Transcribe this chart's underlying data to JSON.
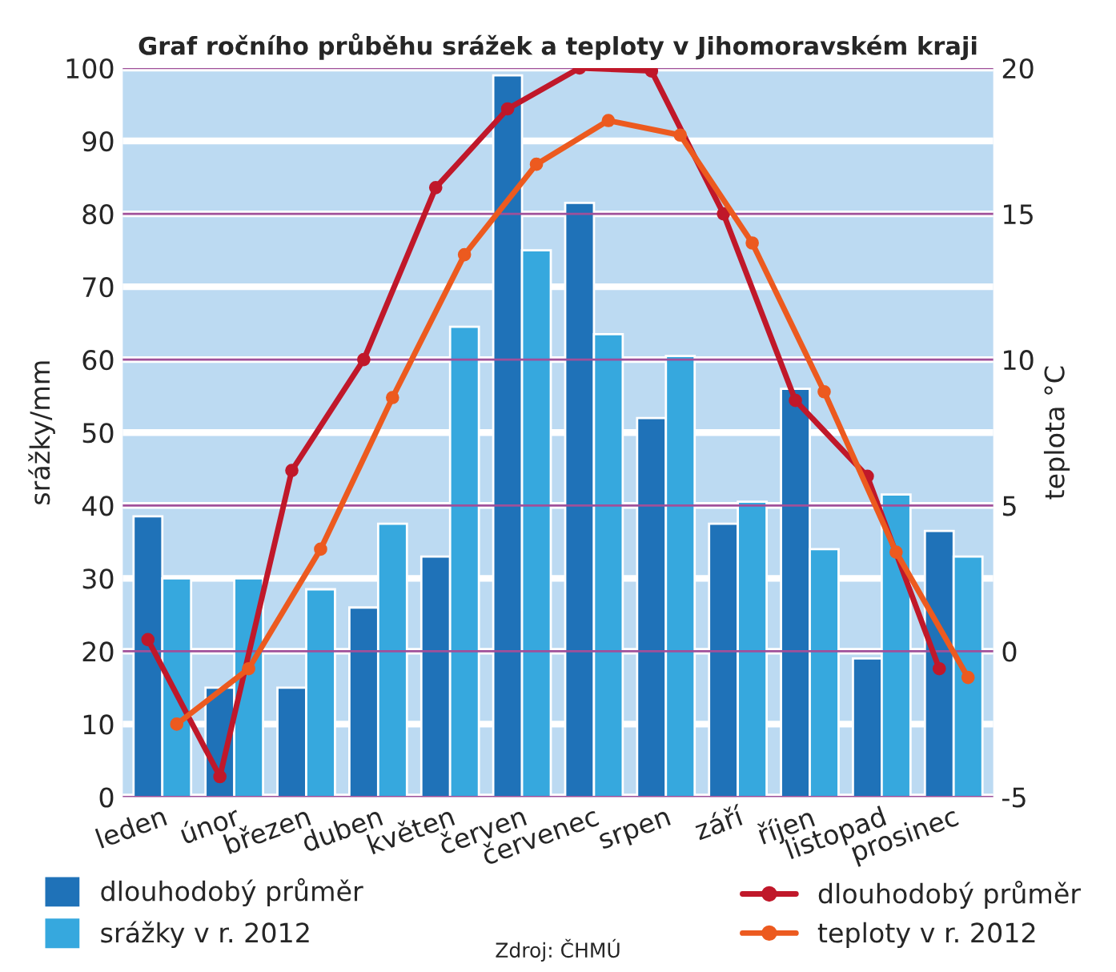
{
  "chart_data": {
    "type": "bar",
    "title": "Graf ročního průběhu srážek a teploty v Jihomoravském kraji",
    "categories": [
      "leden",
      "únor",
      "březen",
      "duben",
      "květen",
      "červen",
      "červenec",
      "srpen",
      "září",
      "říjen",
      "listopad",
      "prosinec"
    ],
    "series": [
      {
        "name": "dlouhodobý průměr",
        "color": "#1f72b8",
        "values": [
          38.5,
          15,
          15,
          26,
          33,
          99,
          81.5,
          52,
          37.5,
          56,
          19,
          36.5
        ]
      },
      {
        "name": "srážky v r. 2012",
        "color": "#36a8de",
        "values": [
          30,
          30,
          28.5,
          37.5,
          64.5,
          75,
          63.5,
          60.5,
          40.5,
          34,
          41.5,
          33
        ]
      },
      {
        "name": "dlouhodobý průměr",
        "type": "line",
        "axis": "y2",
        "color": "#c0182a",
        "values": [
          0.4,
          -4.3,
          6.2,
          10,
          15.9,
          18.6,
          20,
          19.9,
          15,
          8.6,
          6,
          -0.6
        ]
      },
      {
        "name": "teploty v r. 2012",
        "type": "line",
        "axis": "y2",
        "color": "#ec5a1f",
        "values": [
          -2.5,
          -0.6,
          3.5,
          8.7,
          13.6,
          16.7,
          18.2,
          17.7,
          14,
          8.9,
          3.4,
          -0.9
        ]
      }
    ],
    "ylabel": "srážky/mm",
    "y2label": "teplota °C",
    "ylim": [
      0,
      100
    ],
    "yticks": [
      0,
      10,
      20,
      30,
      40,
      50,
      60,
      70,
      80,
      90,
      100
    ],
    "y2lim": [
      -5,
      20
    ],
    "y2ticks": [
      -5,
      0,
      5,
      10,
      15,
      20
    ],
    "grid": true,
    "legend": "bottom",
    "marker": "circle",
    "annotations": [
      "Zdroj: ČHMÚ"
    ]
  }
}
